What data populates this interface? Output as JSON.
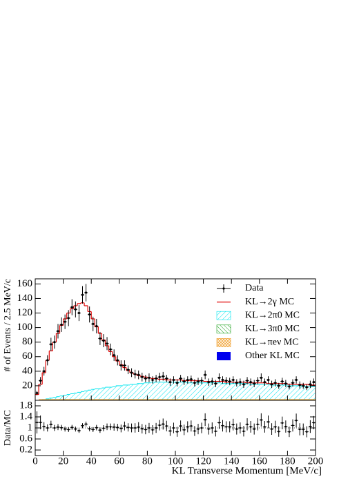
{
  "chart_data": [
    {
      "type": "histogram",
      "ylabel": "# of Events / 2.5 MeV/c",
      "xlim": [
        0,
        200
      ],
      "ylim": [
        0,
        167
      ],
      "yticks": [
        20,
        40,
        60,
        80,
        100,
        120,
        140,
        160
      ],
      "bins": [
        0,
        2.5,
        5,
        7.5,
        10,
        12.5,
        15,
        17.5,
        20,
        22.5,
        25,
        27.5,
        30,
        32.5,
        35,
        37.5,
        40,
        42.5,
        45,
        47.5,
        50,
        52.5,
        55,
        57.5,
        60,
        62.5,
        65,
        67.5,
        70,
        72.5,
        75,
        77.5,
        80,
        82.5,
        85,
        87.5,
        90,
        92.5,
        95,
        97.5,
        100,
        102.5,
        105,
        107.5,
        110,
        112.5,
        115,
        117.5,
        120,
        122.5,
        125,
        127.5,
        130,
        132.5,
        135,
        137.5,
        140,
        142.5,
        145,
        147.5,
        150,
        152.5,
        155,
        157.5,
        160,
        162.5,
        165,
        167.5,
        170,
        172.5,
        175,
        177.5,
        180,
        182.5,
        185,
        187.5,
        190,
        192.5,
        195,
        197.5,
        200
      ],
      "legend": "upper right",
      "series": [
        {
          "name": "Data",
          "color": "#000000",
          "style": "points",
          "values": [
            10,
            27,
            40,
            55,
            77,
            80,
            95,
            104,
            108,
            113,
            128,
            125,
            120,
            145,
            148,
            118,
            105,
            102,
            85,
            82,
            78,
            70,
            62,
            55,
            48,
            48,
            42,
            38,
            36,
            35,
            32,
            30,
            31,
            28,
            30,
            32,
            33,
            30,
            25,
            28,
            24,
            30,
            26,
            28,
            29,
            24,
            26,
            27,
            35,
            25,
            26,
            23,
            31,
            28,
            27,
            26,
            28,
            24,
            25,
            22,
            27,
            25,
            23,
            27,
            31,
            25,
            28,
            22,
            24,
            20,
            26,
            23,
            19,
            24,
            28,
            21,
            20,
            18,
            22,
            25
          ],
          "errors": [
            3,
            5,
            6,
            7,
            9,
            9,
            10,
            10,
            10,
            11,
            11,
            11,
            11,
            12,
            12,
            11,
            10,
            10,
            9,
            9,
            9,
            8,
            8,
            7,
            7,
            7,
            6,
            6,
            6,
            6,
            6,
            5,
            6,
            5,
            5,
            6,
            6,
            5,
            5,
            5,
            5,
            5,
            5,
            5,
            5,
            5,
            5,
            5,
            6,
            5,
            5,
            5,
            6,
            5,
            5,
            5,
            5,
            5,
            5,
            5,
            5,
            5,
            5,
            5,
            6,
            5,
            5,
            5,
            5,
            4,
            5,
            5,
            4,
            5,
            5,
            5,
            4,
            4,
            5,
            5
          ]
        },
        {
          "name": "KL→2γ  MC",
          "color": "#e00000",
          "style": "step",
          "values": [
            8,
            22,
            38,
            55,
            68,
            80,
            92,
            103,
            112,
            120,
            126,
            130,
            133,
            134,
            130,
            122,
            112,
            101,
            92,
            83,
            75,
            67,
            60,
            54,
            49,
            45,
            41,
            38,
            36,
            34,
            33,
            32,
            31,
            30,
            30,
            29,
            29,
            28,
            28,
            28,
            28,
            28,
            27,
            27,
            27,
            27,
            27,
            27,
            26,
            26,
            26,
            26,
            26,
            26,
            25,
            25,
            25,
            25,
            25,
            25,
            24,
            24,
            24,
            24,
            24,
            24,
            23,
            23,
            23,
            23,
            23,
            23,
            22,
            22,
            22,
            22,
            22,
            22,
            21,
            21
          ]
        },
        {
          "name": "KL→2π0 MC",
          "color": "#00e5ee",
          "style": "hatch",
          "values": [
            0,
            0,
            1,
            2,
            3,
            4,
            5,
            6,
            7,
            8,
            9,
            10,
            11,
            12,
            13,
            14,
            15,
            16,
            16,
            17,
            18,
            18,
            19,
            20,
            20,
            21,
            21,
            22,
            22,
            23,
            23,
            24,
            24,
            25,
            25,
            25,
            25,
            25,
            25,
            25,
            25,
            25,
            25,
            24,
            24,
            24,
            24,
            24,
            24,
            24,
            24,
            24,
            24,
            23,
            23,
            23,
            23,
            23,
            23,
            23,
            23,
            22,
            22,
            22,
            22,
            22,
            22,
            21,
            21,
            21,
            21,
            21,
            20,
            20,
            20,
            20,
            19,
            19,
            19,
            19
          ]
        },
        {
          "name": "KL→3π0 MC",
          "color": "#1aa01a",
          "style": "hatch",
          "values": [
            0,
            0,
            1,
            1,
            1,
            1,
            1,
            1,
            1,
            1,
            1,
            1,
            1,
            1,
            1,
            1,
            1,
            1,
            1,
            1,
            1,
            1,
            1,
            1,
            1,
            1,
            1,
            1,
            1,
            1,
            1,
            1,
            1,
            1,
            1,
            1,
            1,
            1,
            1,
            1,
            1,
            1,
            1,
            1,
            1,
            1,
            1,
            1,
            1,
            1,
            1,
            1,
            1,
            1,
            1,
            1,
            1,
            1,
            1,
            1,
            1,
            1,
            1,
            1,
            1,
            1,
            1,
            1,
            1,
            1,
            1,
            1,
            1,
            1,
            1,
            1,
            1,
            1,
            1,
            1
          ]
        },
        {
          "name": "KL→πeν  MC",
          "color": "#f0a030",
          "style": "hatch",
          "values": [
            0,
            1,
            1,
            1,
            1,
            1,
            1,
            1,
            1,
            1,
            1,
            1,
            1,
            1,
            1,
            1,
            1,
            1,
            1,
            1,
            1,
            1,
            1,
            1,
            1,
            1,
            1,
            1,
            1,
            1,
            1,
            1,
            1,
            1,
            1,
            1,
            1,
            1,
            1,
            1,
            1,
            1,
            1,
            1,
            1,
            1,
            1,
            1,
            1,
            1,
            1,
            1,
            1,
            1,
            1,
            1,
            1,
            1,
            1,
            1,
            1,
            1,
            1,
            1,
            1,
            1,
            1,
            1,
            1,
            1,
            1,
            1,
            1,
            1,
            1,
            1,
            1,
            1,
            1,
            1
          ]
        },
        {
          "name": "Other KL MC",
          "color": "#0000ee",
          "style": "fill",
          "values": [
            0.5,
            0.5,
            0.5,
            0.5,
            0.5,
            0.5,
            0.5,
            0.5,
            0.5,
            0.5,
            0.5,
            0.5,
            0.5,
            0.5,
            0.5,
            0.5,
            0.5,
            0.5,
            0.5,
            0.5,
            0.5,
            0.5,
            0.5,
            0.5,
            0.5,
            0.5,
            0.5,
            0.5,
            0.5,
            0.5,
            0.5,
            0.5,
            0.5,
            0.5,
            0.5,
            0.5,
            0.5,
            0.5,
            0.5,
            0.5,
            0.5,
            0.5,
            0.5,
            0.5,
            0.5,
            0.5,
            0.5,
            0.5,
            0.5,
            0.5,
            0.5,
            0.5,
            0.5,
            0.5,
            0.5,
            0.5,
            0.5,
            0.5,
            0.5,
            0.5,
            0.5,
            0.5,
            0.5,
            0.5,
            0.5,
            0.5,
            0.5,
            0.5,
            0.5,
            0.5,
            0.5,
            0.5,
            0.5,
            0.5,
            0.5,
            0.5,
            0.5,
            0.5,
            0.5,
            0.5
          ]
        }
      ]
    },
    {
      "type": "ratio",
      "ylabel": "Data/MC",
      "xlabel": "KL Transverse Momentum [MeV/c]",
      "xlim": [
        0,
        200
      ],
      "ylim": [
        0,
        2
      ],
      "xticks": [
        0,
        20,
        40,
        60,
        80,
        100,
        120,
        140,
        160,
        180,
        200
      ],
      "yticks": [
        0.2,
        0.6,
        1,
        1.4,
        1.8
      ],
      "reference_line": 1,
      "values": [
        1.2,
        1.2,
        1.05,
        1.0,
        1.13,
        1.0,
        1.03,
        1.01,
        0.96,
        0.94,
        1.02,
        0.96,
        0.9,
        1.08,
        1.14,
        0.97,
        0.94,
        1.01,
        0.92,
        0.99,
        1.04,
        1.04,
        1.03,
        1.02,
        0.98,
        1.07,
        1.02,
        1.0,
        1.0,
        1.03,
        0.97,
        0.94,
        1.0,
        0.93,
        1.0,
        1.1,
        1.14,
        1.07,
        0.89,
        1.0,
        0.86,
        1.07,
        0.93,
        1.04,
        1.07,
        0.89,
        0.96,
        1.0,
        1.3,
        0.96,
        1.0,
        0.88,
        1.19,
        1.08,
        1.04,
        1.04,
        1.12,
        0.96,
        1.0,
        0.88,
        1.13,
        1.04,
        0.96,
        1.13,
        1.29,
        1.04,
        1.22,
        0.96,
        1.04,
        0.87,
        1.18,
        1.05,
        0.86,
        1.09,
        1.27,
        0.95,
        0.95,
        0.86,
        1.05,
        1.19
      ],
      "errors": [
        0.4,
        0.25,
        0.16,
        0.13,
        0.13,
        0.11,
        0.11,
        0.1,
        0.09,
        0.09,
        0.09,
        0.09,
        0.08,
        0.09,
        0.09,
        0.09,
        0.09,
        0.1,
        0.1,
        0.11,
        0.12,
        0.12,
        0.13,
        0.13,
        0.14,
        0.16,
        0.15,
        0.16,
        0.17,
        0.18,
        0.17,
        0.17,
        0.18,
        0.17,
        0.18,
        0.19,
        0.2,
        0.19,
        0.18,
        0.19,
        0.18,
        0.2,
        0.19,
        0.2,
        0.2,
        0.18,
        0.19,
        0.19,
        0.23,
        0.2,
        0.2,
        0.19,
        0.22,
        0.21,
        0.2,
        0.2,
        0.21,
        0.2,
        0.2,
        0.19,
        0.22,
        0.21,
        0.2,
        0.22,
        0.24,
        0.21,
        0.23,
        0.21,
        0.22,
        0.19,
        0.23,
        0.22,
        0.19,
        0.22,
        0.25,
        0.22,
        0.21,
        0.2,
        0.23,
        0.24
      ]
    }
  ]
}
